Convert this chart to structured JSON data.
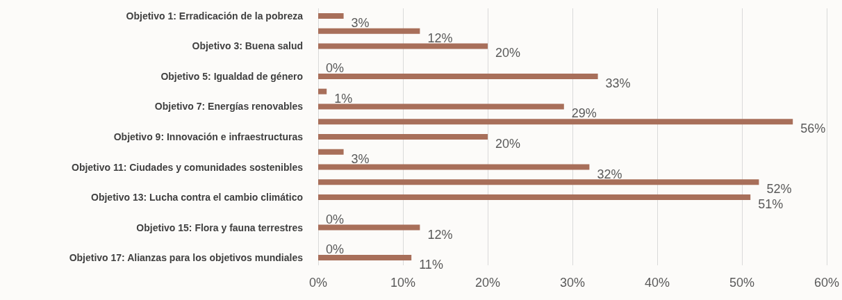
{
  "chart_data": {
    "type": "bar",
    "orientation": "horizontal",
    "categories": [
      "Objetivo 1: Erradicación de la pobreza",
      null,
      "Objetivo 3: Buena salud",
      null,
      "Objetivo 5: Igualdad de género",
      null,
      "Objetivo 7: Energías renovables",
      null,
      "Objetivo 9: Innovación e infraestructuras",
      null,
      "Objetivo 11: Ciudades y comunidades sostenibles",
      null,
      "Objetivo 13: Lucha contra el cambio climático",
      null,
      "Objetivo 15: Flora y fauna terrestres",
      null,
      "Objetivo 17: Alianzas para los objetivos mundiales"
    ],
    "values": [
      3,
      12,
      20,
      0,
      33,
      1,
      29,
      56,
      20,
      3,
      32,
      52,
      51,
      0,
      12,
      0,
      11
    ],
    "value_labels": [
      "3%",
      "12%",
      "20%",
      "0%",
      "33%",
      "1%",
      "29%",
      "56%",
      "20%",
      "3%",
      "32%",
      "52%",
      "51%",
      "0%",
      "12%",
      "0%",
      "11%"
    ],
    "color": "#a86f5a",
    "xlim": [
      0,
      60
    ],
    "xticks": [
      {
        "value": 0,
        "label": "0%"
      },
      {
        "value": 10,
        "label": "10%"
      },
      {
        "value": 20,
        "label": "20%"
      },
      {
        "value": 30,
        "label": "30%"
      },
      {
        "value": 40,
        "label": "40%"
      },
      {
        "value": 50,
        "label": "50%"
      },
      {
        "value": 60,
        "label": "60%"
      }
    ],
    "grid": "x"
  }
}
